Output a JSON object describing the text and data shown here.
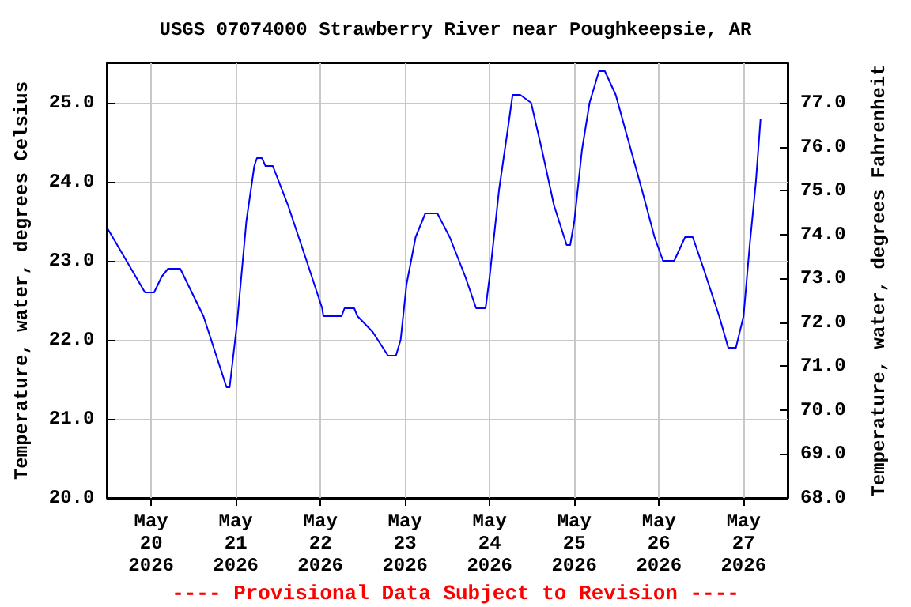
{
  "chart_data": {
    "type": "line",
    "title": "USGS 07074000 Strawberry River near Poughkeepsie, AR",
    "ylabel": "Temperature, water, degrees Celsius",
    "y2label": "Temperature, water, degrees Fahrenheit",
    "annotations": [
      "---- Provisional Data Subject to Revision ----"
    ],
    "x": [
      "2026-05-19T11:45",
      "2026-05-19T17:00",
      "2026-05-19T22:15",
      "2026-05-20T00:50",
      "2026-05-20T03:00",
      "2026-05-20T04:48",
      "2026-05-20T08:15",
      "2026-05-20T14:50",
      "2026-05-20T21:23",
      "2026-05-20T22:15",
      "2026-05-21T00:20",
      "2026-05-21T03:00",
      "2026-05-21T05:15",
      "2026-05-21T06:00",
      "2026-05-21T07:25",
      "2026-05-21T08:25",
      "2026-05-21T10:30",
      "2026-05-21T14:50",
      "2026-05-21T20:05",
      "2026-05-22T00:30",
      "2026-05-22T00:50",
      "2026-05-22T06:00",
      "2026-05-22T06:50",
      "2026-05-22T09:35",
      "2026-05-22T10:30",
      "2026-05-22T14:50",
      "2026-05-22T19:10",
      "2026-05-22T21:25",
      "2026-05-22T22:45",
      "2026-05-23T00:25",
      "2026-05-23T03:00",
      "2026-05-23T05:45",
      "2026-05-23T09:10",
      "2026-05-23T12:40",
      "2026-05-23T17:05",
      "2026-05-23T20:10",
      "2026-05-23T22:50",
      "2026-05-24T00:00",
      "2026-05-24T02:40",
      "2026-05-24T05:15",
      "2026-05-24T06:30",
      "2026-05-24T08:40",
      "2026-05-24T11:45",
      "2026-05-24T14:50",
      "2026-05-24T18:15",
      "2026-05-24T21:50",
      "2026-05-24T22:50",
      "2026-05-25T00:00",
      "2026-05-25T02:10",
      "2026-05-25T04:20",
      "2026-05-25T07:00",
      "2026-05-25T08:40",
      "2026-05-25T11:45",
      "2026-05-25T14:50",
      "2026-05-25T19:10",
      "2026-05-25T22:45",
      "2026-05-26T01:10",
      "2026-05-26T04:20",
      "2026-05-26T07:25",
      "2026-05-26T09:35",
      "2026-05-26T12:40",
      "2026-05-26T17:05",
      "2026-05-26T19:40",
      "2026-05-26T21:50",
      "2026-05-27T00:00",
      "2026-05-27T01:45",
      "2026-05-27T03:30",
      "2026-05-27T04:50"
    ],
    "series": [
      {
        "color": "#0000ff",
        "values": [
          23.4,
          23.0,
          22.6,
          22.6,
          22.8,
          22.9,
          22.9,
          22.3,
          21.4,
          21.4,
          22.2,
          23.5,
          24.2,
          24.3,
          24.3,
          24.2,
          24.2,
          23.7,
          23.0,
          22.4,
          22.3,
          22.3,
          22.4,
          22.4,
          22.3,
          22.1,
          21.8,
          21.8,
          22.0,
          22.7,
          23.3,
          23.6,
          23.6,
          23.3,
          22.8,
          22.4,
          22.4,
          22.8,
          23.9,
          24.7,
          25.1,
          25.1,
          25.0,
          24.4,
          23.7,
          23.2,
          23.2,
          23.5,
          24.4,
          25.0,
          25.4,
          25.4,
          25.1,
          24.6,
          23.9,
          23.3,
          23.0,
          23.0,
          23.3,
          23.3,
          22.9,
          22.3,
          21.9,
          21.9,
          22.3,
          23.2,
          24.0,
          24.8
        ]
      }
    ],
    "xlim": [
      "2026-05-19T11:30",
      "2026-05-27T12:30"
    ],
    "xticks": [
      {
        "value": "2026-05-20",
        "label": "May\n20\n2026"
      },
      {
        "value": "2026-05-21",
        "label": "May\n21\n2026"
      },
      {
        "value": "2026-05-22",
        "label": "May\n22\n2026"
      },
      {
        "value": "2026-05-23",
        "label": "May\n23\n2026"
      },
      {
        "value": "2026-05-24",
        "label": "May\n24\n2026"
      },
      {
        "value": "2026-05-25",
        "label": "May\n25\n2026"
      },
      {
        "value": "2026-05-26",
        "label": "May\n26\n2026"
      },
      {
        "value": "2026-05-27",
        "label": "May\n27\n2026"
      }
    ],
    "ylim": [
      20,
      25.5
    ],
    "yticks": [
      {
        "value": 20,
        "label": "20.0"
      },
      {
        "value": 21,
        "label": "21.0"
      },
      {
        "value": 22,
        "label": "22.0"
      },
      {
        "value": 23,
        "label": "23.0"
      },
      {
        "value": 24,
        "label": "24.0"
      },
      {
        "value": 25,
        "label": "25.0"
      }
    ],
    "y2lim": [
      68,
      77.9
    ],
    "y2ticks": [
      {
        "value": 68,
        "label": "68.0"
      },
      {
        "value": 69,
        "label": "69.0"
      },
      {
        "value": 70,
        "label": "70.0"
      },
      {
        "value": 71,
        "label": "71.0"
      },
      {
        "value": 72,
        "label": "72.0"
      },
      {
        "value": 73,
        "label": "73.0"
      },
      {
        "value": 74,
        "label": "74.0"
      },
      {
        "value": 75,
        "label": "75.0"
      },
      {
        "value": 76,
        "label": "76.0"
      },
      {
        "value": 77,
        "label": "77.0"
      }
    ],
    "grid": true,
    "marker": "none",
    "line_style": "solid"
  }
}
